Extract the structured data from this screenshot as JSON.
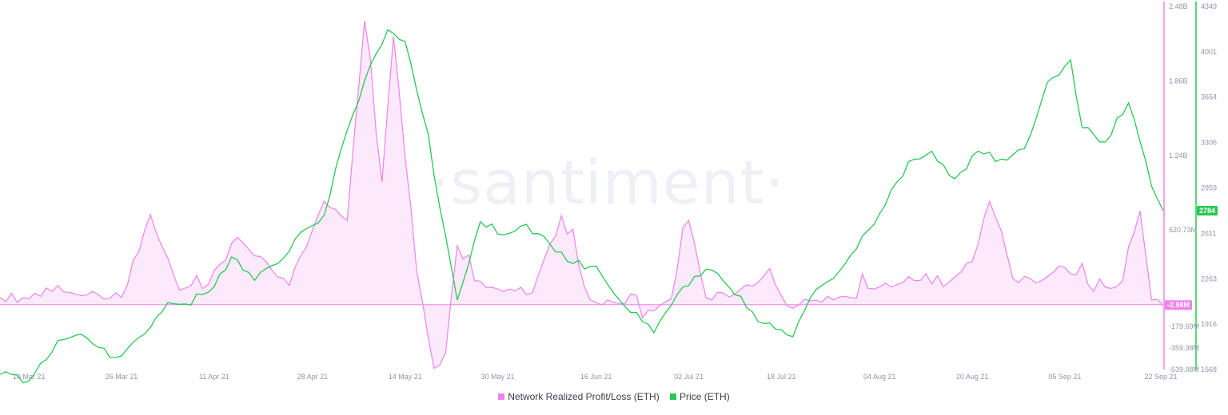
{
  "watermark": "·santiment·",
  "colors": {
    "profit": "#ee82ee",
    "price": "#26c953",
    "profit_fill": "#fbe4fb",
    "axis_text": "#8e95a8"
  },
  "chart_data": {
    "type": "line",
    "x_start": "2021-03-05",
    "x_end": "2021-09-22",
    "x_ticks": [
      "10 Mar 21",
      "26 Mar 21",
      "11 Apr 21",
      "28 Apr 21",
      "14 May 21",
      "30 May 21",
      "16 Jun 21",
      "02 Jul 21",
      "18 Jul 21",
      "04 Aug 21",
      "20 Aug 21",
      "05 Sep 21",
      "22 Sep 21"
    ],
    "y_left": {
      "ticks": [
        "2.48B",
        "1.86B",
        "1.24B",
        "620.73M",
        "-179.69M",
        "-359.38M",
        "-539.08M"
      ],
      "ylim": [
        -539.08,
        2480
      ],
      "units": "M"
    },
    "y_right": {
      "ticks": [
        "4349",
        "4001",
        "3654",
        "3306",
        "2959",
        "2611",
        "2263",
        "1916",
        "1568"
      ],
      "ylim": [
        1568,
        4349
      ]
    },
    "badges": {
      "profit_last": "-2.98M",
      "price_last": "2784"
    },
    "series": [
      {
        "name": "Price (ETH)",
        "axis": "right",
        "points": [
          [
            "2021-03-05",
            1530
          ],
          [
            "2021-03-10",
            1480
          ],
          [
            "2021-03-15",
            1790
          ],
          [
            "2021-03-20",
            1810
          ],
          [
            "2021-03-25",
            1660
          ],
          [
            "2021-03-30",
            1840
          ],
          [
            "2021-04-03",
            2080
          ],
          [
            "2021-04-06",
            2070
          ],
          [
            "2021-04-10",
            2160
          ],
          [
            "2021-04-14",
            2430
          ],
          [
            "2021-04-18",
            2250
          ],
          [
            "2021-04-22",
            2380
          ],
          [
            "2021-04-26",
            2620
          ],
          [
            "2021-04-30",
            2750
          ],
          [
            "2021-05-04",
            3400
          ],
          [
            "2021-05-08",
            3900
          ],
          [
            "2021-05-11",
            4170
          ],
          [
            "2021-05-14",
            4080
          ],
          [
            "2021-05-18",
            3370
          ],
          [
            "2021-05-20",
            2810
          ],
          [
            "2021-05-23",
            2100
          ],
          [
            "2021-05-27",
            2700
          ],
          [
            "2021-05-31",
            2600
          ],
          [
            "2021-06-04",
            2680
          ],
          [
            "2021-06-08",
            2530
          ],
          [
            "2021-06-12",
            2380
          ],
          [
            "2021-06-16",
            2360
          ],
          [
            "2021-06-21",
            2050
          ],
          [
            "2021-06-26",
            1850
          ],
          [
            "2021-07-01",
            2200
          ],
          [
            "2021-07-06",
            2330
          ],
          [
            "2021-07-10",
            2140
          ],
          [
            "2021-07-15",
            1920
          ],
          [
            "2021-07-20",
            1820
          ],
          [
            "2021-07-24",
            2180
          ],
          [
            "2021-07-28",
            2320
          ],
          [
            "2021-08-01",
            2590
          ],
          [
            "2021-08-05",
            2830
          ],
          [
            "2021-08-09",
            3160
          ],
          [
            "2021-08-13",
            3240
          ],
          [
            "2021-08-17",
            3030
          ],
          [
            "2021-08-21",
            3240
          ],
          [
            "2021-08-25",
            3180
          ],
          [
            "2021-08-29",
            3260
          ],
          [
            "2021-09-02",
            3770
          ],
          [
            "2021-09-06",
            3940
          ],
          [
            "2021-09-08",
            3420
          ],
          [
            "2021-09-12",
            3310
          ],
          [
            "2021-09-16",
            3610
          ],
          [
            "2021-09-20",
            2970
          ],
          [
            "2021-09-22",
            2784
          ]
        ]
      },
      {
        "name": "Network Realized Profit/Loss (ETH)",
        "axis": "left",
        "points": [
          [
            "2021-03-05",
            60
          ],
          [
            "2021-03-10",
            50
          ],
          [
            "2021-03-15",
            160
          ],
          [
            "2021-03-20",
            80
          ],
          [
            "2021-03-26",
            60
          ],
          [
            "2021-03-31",
            750
          ],
          [
            "2021-04-05",
            120
          ],
          [
            "2021-04-10",
            170
          ],
          [
            "2021-04-15",
            560
          ],
          [
            "2021-04-19",
            400
          ],
          [
            "2021-04-24",
            160
          ],
          [
            "2021-04-30",
            860
          ],
          [
            "2021-05-04",
            700
          ],
          [
            "2021-05-07",
            2360
          ],
          [
            "2021-05-10",
            1020
          ],
          [
            "2021-05-12",
            2230
          ],
          [
            "2021-05-16",
            280
          ],
          [
            "2021-05-19",
            -530
          ],
          [
            "2021-05-21",
            -400
          ],
          [
            "2021-05-23",
            490
          ],
          [
            "2021-05-26",
            200
          ],
          [
            "2021-05-30",
            130
          ],
          [
            "2021-06-05",
            100
          ],
          [
            "2021-06-10",
            740
          ],
          [
            "2021-06-15",
            40
          ],
          [
            "2021-06-20",
            10
          ],
          [
            "2021-06-24",
            -110
          ],
          [
            "2021-06-29",
            50
          ],
          [
            "2021-07-02",
            700
          ],
          [
            "2021-07-05",
            60
          ],
          [
            "2021-07-10",
            90
          ],
          [
            "2021-07-15",
            240
          ],
          [
            "2021-07-20",
            -30
          ],
          [
            "2021-07-25",
            20
          ],
          [
            "2021-07-30",
            60
          ],
          [
            "2021-08-05",
            180
          ],
          [
            "2021-08-10",
            200
          ],
          [
            "2021-08-15",
            150
          ],
          [
            "2021-08-20",
            360
          ],
          [
            "2021-08-23",
            860
          ],
          [
            "2021-08-27",
            220
          ],
          [
            "2021-09-01",
            200
          ],
          [
            "2021-09-05",
            310
          ],
          [
            "2021-09-10",
            110
          ],
          [
            "2021-09-15",
            200
          ],
          [
            "2021-09-18",
            780
          ],
          [
            "2021-09-20",
            40
          ],
          [
            "2021-09-22",
            -3
          ]
        ]
      }
    ]
  }
}
